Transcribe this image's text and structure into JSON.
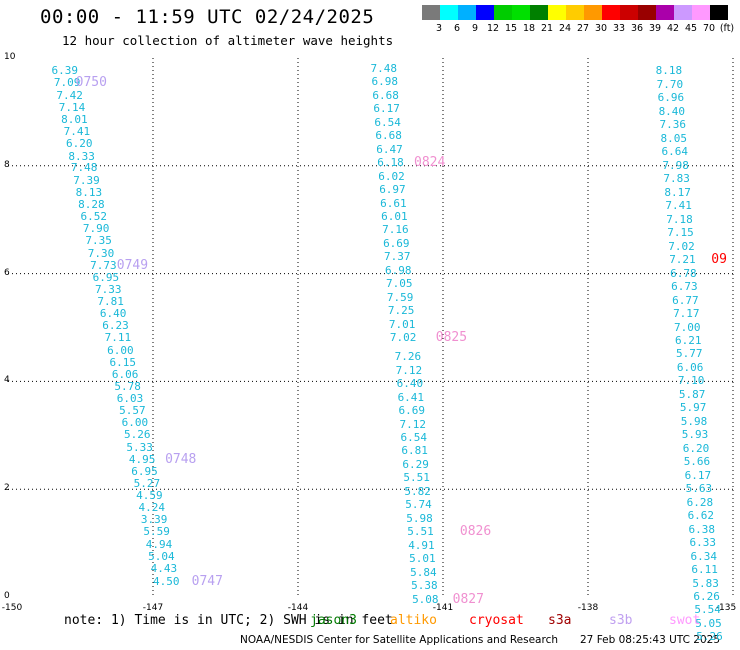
{
  "title": "00:00 - 11:59 UTC 02/24/2025",
  "subtitle": "12 hour collection of altimeter wave heights",
  "colorbar": {
    "labels": [
      "3",
      "6",
      "9",
      "12",
      "15",
      "18",
      "21",
      "24",
      "27",
      "30",
      "33",
      "36",
      "39",
      "42",
      "45",
      "70",
      "(ft)"
    ],
    "colors": [
      "#7a7a7a",
      "#00ffff",
      "#00b0ff",
      "#0000ff",
      "#00cc00",
      "#00e000",
      "#008000",
      "#ffff00",
      "#ffcc00",
      "#ff9900",
      "#ff0000",
      "#cc0000",
      "#990000",
      "#aa00aa",
      "#cc99ff",
      "#ff99ff",
      "#000000"
    ]
  },
  "axes": {
    "x_ticks": [
      "-150",
      "-147",
      "-144",
      "-141",
      "-138",
      "-135"
    ],
    "y_ticks": [
      "0",
      "2",
      "4",
      "6",
      "8",
      "10"
    ],
    "xlim": [
      -150,
      -135
    ],
    "ylim": [
      0,
      10
    ]
  },
  "tracks": [
    {
      "color": "#1ab8d8",
      "points": [
        {
          "x": -149.1,
          "y": 9.75,
          "v": "6.39"
        },
        {
          "x": -149.05,
          "y": 9.53,
          "v": "7.09"
        },
        {
          "x": -149.0,
          "y": 9.3,
          "v": "7.42"
        },
        {
          "x": -148.95,
          "y": 9.07,
          "v": "7.14"
        },
        {
          "x": -148.9,
          "y": 8.85,
          "v": "8.01"
        },
        {
          "x": -148.85,
          "y": 8.62,
          "v": "7.41"
        },
        {
          "x": -148.8,
          "y": 8.4,
          "v": "6.20"
        },
        {
          "x": -148.75,
          "y": 8.17,
          "v": "8.33"
        },
        {
          "x": -148.7,
          "y": 7.95,
          "v": "7.48"
        },
        {
          "x": -148.65,
          "y": 7.72,
          "v": "7.39"
        },
        {
          "x": -148.6,
          "y": 7.5,
          "v": "8.13"
        },
        {
          "x": -148.55,
          "y": 7.27,
          "v": "8.28"
        },
        {
          "x": -148.5,
          "y": 7.05,
          "v": "6.52"
        },
        {
          "x": -148.45,
          "y": 6.82,
          "v": "7.90"
        },
        {
          "x": -148.4,
          "y": 6.6,
          "v": "7.35"
        },
        {
          "x": -148.35,
          "y": 6.37,
          "v": "7.30"
        },
        {
          "x": -148.3,
          "y": 6.15,
          "v": "7.73"
        },
        {
          "x": -148.25,
          "y": 5.92,
          "v": "6.95"
        },
        {
          "x": -148.2,
          "y": 5.7,
          "v": "7.33"
        },
        {
          "x": -148.15,
          "y": 5.47,
          "v": "7.81"
        },
        {
          "x": -148.1,
          "y": 5.25,
          "v": "6.40"
        },
        {
          "x": -148.05,
          "y": 5.02,
          "v": "6.23"
        },
        {
          "x": -148.0,
          "y": 4.8,
          "v": "7.11"
        },
        {
          "x": -147.95,
          "y": 4.57,
          "v": "6.00"
        },
        {
          "x": -147.9,
          "y": 4.35,
          "v": "6.15"
        },
        {
          "x": -147.85,
          "y": 4.12,
          "v": "6.06"
        },
        {
          "x": -147.8,
          "y": 3.9,
          "v": "5.78"
        },
        {
          "x": -147.75,
          "y": 3.67,
          "v": "6.03"
        },
        {
          "x": -147.7,
          "y": 3.45,
          "v": "5.57"
        },
        {
          "x": -147.65,
          "y": 3.22,
          "v": "6.00"
        },
        {
          "x": -147.6,
          "y": 3.0,
          "v": "5.26"
        },
        {
          "x": -147.55,
          "y": 2.77,
          "v": "5.33"
        },
        {
          "x": -147.5,
          "y": 2.55,
          "v": "4.95"
        },
        {
          "x": -147.45,
          "y": 2.32,
          "v": "6.95"
        },
        {
          "x": -147.4,
          "y": 2.1,
          "v": "5.27"
        },
        {
          "x": -147.35,
          "y": 1.87,
          "v": "4.59"
        },
        {
          "x": -147.3,
          "y": 1.65,
          "v": "4.24"
        },
        {
          "x": -147.25,
          "y": 1.42,
          "v": "3.39"
        },
        {
          "x": -147.2,
          "y": 1.2,
          "v": "5.59"
        },
        {
          "x": -147.15,
          "y": 0.97,
          "v": "4.94"
        },
        {
          "x": -147.1,
          "y": 0.75,
          "v": "5.04"
        },
        {
          "x": -147.05,
          "y": 0.52,
          "v": "4.43"
        },
        {
          "x": -147.0,
          "y": 0.28,
          "v": "4.50"
        }
      ]
    },
    {
      "color": "#1ab8d8",
      "points": [
        {
          "x": -142.5,
          "y": 9.8,
          "v": "7.48"
        },
        {
          "x": -142.48,
          "y": 9.55,
          "v": "6.98"
        },
        {
          "x": -142.46,
          "y": 9.3,
          "v": "6.68"
        },
        {
          "x": -142.44,
          "y": 9.05,
          "v": "6.17"
        },
        {
          "x": -142.42,
          "y": 8.8,
          "v": "6.54"
        },
        {
          "x": -142.4,
          "y": 8.55,
          "v": "6.68"
        },
        {
          "x": -142.38,
          "y": 8.3,
          "v": "6.47"
        },
        {
          "x": -142.36,
          "y": 8.05,
          "v": "6.18"
        },
        {
          "x": -142.34,
          "y": 7.8,
          "v": "6.02"
        },
        {
          "x": -142.32,
          "y": 7.55,
          "v": "6.97"
        },
        {
          "x": -142.3,
          "y": 7.3,
          "v": "6.61"
        },
        {
          "x": -142.28,
          "y": 7.05,
          "v": "6.01"
        },
        {
          "x": -142.26,
          "y": 6.8,
          "v": "7.16"
        },
        {
          "x": -142.24,
          "y": 6.55,
          "v": "6.69"
        },
        {
          "x": -142.22,
          "y": 6.3,
          "v": "7.37"
        },
        {
          "x": -142.2,
          "y": 6.05,
          "v": "6.98"
        },
        {
          "x": -142.18,
          "y": 5.8,
          "v": "7.05"
        },
        {
          "x": -142.16,
          "y": 5.55,
          "v": "7.59"
        },
        {
          "x": -142.14,
          "y": 5.3,
          "v": "7.25"
        },
        {
          "x": -142.12,
          "y": 5.05,
          "v": "7.01"
        },
        {
          "x": -142.1,
          "y": 4.8,
          "v": "7.02"
        },
        {
          "x": -142.0,
          "y": 4.45,
          "v": "7.26"
        },
        {
          "x": -141.98,
          "y": 4.2,
          "v": "7.12"
        },
        {
          "x": -141.96,
          "y": 3.95,
          "v": "6.40"
        },
        {
          "x": -141.94,
          "y": 3.7,
          "v": "6.41"
        },
        {
          "x": -141.92,
          "y": 3.45,
          "v": "6.69"
        },
        {
          "x": -141.9,
          "y": 3.2,
          "v": "7.12"
        },
        {
          "x": -141.88,
          "y": 2.95,
          "v": "6.54"
        },
        {
          "x": -141.86,
          "y": 2.7,
          "v": "6.81"
        },
        {
          "x": -141.84,
          "y": 2.45,
          "v": "6.29"
        },
        {
          "x": -141.82,
          "y": 2.2,
          "v": "5.51"
        },
        {
          "x": -141.8,
          "y": 1.95,
          "v": "5.82"
        },
        {
          "x": -141.78,
          "y": 1.7,
          "v": "5.74"
        },
        {
          "x": -141.76,
          "y": 1.45,
          "v": "5.98"
        },
        {
          "x": -141.74,
          "y": 1.2,
          "v": "5.51"
        },
        {
          "x": -141.72,
          "y": 0.95,
          "v": "4.91"
        },
        {
          "x": -141.7,
          "y": 0.7,
          "v": "5.01"
        },
        {
          "x": -141.68,
          "y": 0.45,
          "v": "5.84"
        },
        {
          "x": -141.66,
          "y": 0.2,
          "v": "5.38"
        },
        {
          "x": -141.64,
          "y": -0.05,
          "v": "5.08"
        }
      ]
    },
    {
      "color": "#1ab8d8",
      "points": [
        {
          "x": -136.6,
          "y": 9.75,
          "v": "8.18"
        },
        {
          "x": -136.58,
          "y": 9.5,
          "v": "7.70"
        },
        {
          "x": -136.56,
          "y": 9.25,
          "v": "6.96"
        },
        {
          "x": -136.54,
          "y": 9.0,
          "v": "8.40"
        },
        {
          "x": -136.52,
          "y": 8.75,
          "v": "7.36"
        },
        {
          "x": -136.5,
          "y": 8.5,
          "v": "8.05"
        },
        {
          "x": -136.48,
          "y": 8.25,
          "v": "6.64"
        },
        {
          "x": -136.46,
          "y": 8.0,
          "v": "7.98"
        },
        {
          "x": -136.44,
          "y": 7.75,
          "v": "7.83"
        },
        {
          "x": -136.42,
          "y": 7.5,
          "v": "8.17"
        },
        {
          "x": -136.4,
          "y": 7.25,
          "v": "7.41"
        },
        {
          "x": -136.38,
          "y": 7.0,
          "v": "7.18"
        },
        {
          "x": -136.36,
          "y": 6.75,
          "v": "7.15"
        },
        {
          "x": -136.34,
          "y": 6.5,
          "v": "7.02"
        },
        {
          "x": -136.32,
          "y": 6.25,
          "v": "7.21"
        },
        {
          "x": -136.3,
          "y": 6.0,
          "v": "6.78"
        },
        {
          "x": -136.28,
          "y": 5.75,
          "v": "6.73"
        },
        {
          "x": -136.26,
          "y": 5.5,
          "v": "6.77"
        },
        {
          "x": -136.24,
          "y": 5.25,
          "v": "7.17"
        },
        {
          "x": -136.22,
          "y": 5.0,
          "v": "7.00"
        },
        {
          "x": -136.2,
          "y": 4.75,
          "v": "6.21"
        },
        {
          "x": -136.18,
          "y": 4.5,
          "v": "5.77"
        },
        {
          "x": -136.16,
          "y": 4.25,
          "v": "6.06"
        },
        {
          "x": -136.14,
          "y": 4.0,
          "v": "7.10"
        },
        {
          "x": -136.12,
          "y": 3.75,
          "v": "5.87"
        },
        {
          "x": -136.1,
          "y": 3.5,
          "v": "5.97"
        },
        {
          "x": -136.08,
          "y": 3.25,
          "v": "5.98"
        },
        {
          "x": -136.06,
          "y": 3.0,
          "v": "5.93"
        },
        {
          "x": -136.04,
          "y": 2.75,
          "v": "6.20"
        },
        {
          "x": -136.02,
          "y": 2.5,
          "v": "5.66"
        },
        {
          "x": -136.0,
          "y": 2.25,
          "v": "6.17"
        },
        {
          "x": -135.98,
          "y": 2.0,
          "v": "5.63"
        },
        {
          "x": -135.96,
          "y": 1.75,
          "v": "6.28"
        },
        {
          "x": -135.94,
          "y": 1.5,
          "v": "6.62"
        },
        {
          "x": -135.92,
          "y": 1.25,
          "v": "6.38"
        },
        {
          "x": -135.9,
          "y": 1.0,
          "v": "6.33"
        },
        {
          "x": -135.88,
          "y": 0.75,
          "v": "6.34"
        },
        {
          "x": -135.86,
          "y": 0.5,
          "v": "6.11"
        },
        {
          "x": -135.84,
          "y": 0.25,
          "v": "5.83"
        },
        {
          "x": -135.82,
          "y": 0.0,
          "v": "6.26"
        },
        {
          "x": -135.8,
          "y": -0.25,
          "v": "5.54"
        },
        {
          "x": -135.78,
          "y": -0.5,
          "v": "5.05"
        },
        {
          "x": -135.76,
          "y": -0.75,
          "v": "5.26"
        }
      ]
    }
  ],
  "pass_labels": [
    {
      "text": "0750",
      "x": -148.6,
      "y": 9.53,
      "color": "#b8a0f0"
    },
    {
      "text": "0749",
      "x": -147.75,
      "y": 6.15,
      "color": "#b8a0f0"
    },
    {
      "text": "0748",
      "x": -146.75,
      "y": 2.55,
      "color": "#b8a0f0"
    },
    {
      "text": "0747",
      "x": -146.2,
      "y": 0.28,
      "color": "#b8a0f0"
    },
    {
      "text": "0824",
      "x": -141.6,
      "y": 8.05,
      "color": "#f090d0"
    },
    {
      "text": "0825",
      "x": -141.15,
      "y": 4.8,
      "color": "#f090d0"
    },
    {
      "text": "0826",
      "x": -140.65,
      "y": 1.2,
      "color": "#f090d0"
    },
    {
      "text": "0827",
      "x": -140.8,
      "y": -0.05,
      "color": "#f090d0"
    },
    {
      "text": "09",
      "x": -135.45,
      "y": 6.25,
      "color": "#ff0000"
    }
  ],
  "note": "note: 1) Time is in UTC; 2) SWH is in feet",
  "missions": [
    {
      "text": "jason3",
      "color": "#007a00"
    },
    {
      "text": "altiko",
      "color": "#ff9900"
    },
    {
      "text": "cryosat",
      "color": "#ff0000"
    },
    {
      "text": "s3a",
      "color": "#a00000"
    },
    {
      "text": "s3b",
      "color": "#c0a0f0"
    },
    {
      "text": "swot",
      "color": "#ff99ff"
    }
  ],
  "credit": "NOAA/NESDIS Center for Satellite Applications and Research",
  "credit_time": "27 Feb 08:25:43 UTC 2025"
}
